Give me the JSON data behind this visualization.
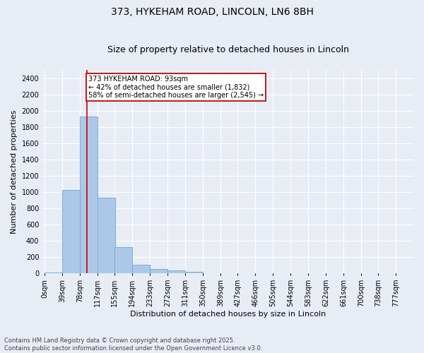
{
  "title_line1": "373, HYKEHAM ROAD, LINCOLN, LN6 8BH",
  "title_line2": "Size of property relative to detached houses in Lincoln",
  "xlabel": "Distribution of detached houses by size in Lincoln",
  "ylabel": "Number of detached properties",
  "bar_color": "#adc8e6",
  "bar_edge_color": "#6aaad4",
  "background_color": "#e8edf5",
  "grid_color": "#ffffff",
  "annotation_box_color": "#cc0000",
  "annotation_text": "373 HYKEHAM ROAD: 93sqm\n← 42% of detached houses are smaller (1,832)\n58% of semi-detached houses are larger (2,545) →",
  "red_line_x": 93,
  "categories": [
    "0sqm",
    "39sqm",
    "78sqm",
    "117sqm",
    "155sqm",
    "194sqm",
    "233sqm",
    "272sqm",
    "311sqm",
    "350sqm",
    "389sqm",
    "427sqm",
    "466sqm",
    "505sqm",
    "544sqm",
    "583sqm",
    "622sqm",
    "661sqm",
    "700sqm",
    "738sqm",
    "777sqm"
  ],
  "bin_edges": [
    0,
    39,
    78,
    117,
    155,
    194,
    233,
    272,
    311,
    350,
    389,
    427,
    466,
    505,
    544,
    583,
    622,
    661,
    700,
    738,
    777
  ],
  "values": [
    15,
    1030,
    1930,
    930,
    320,
    110,
    55,
    35,
    22,
    0,
    0,
    0,
    0,
    0,
    0,
    0,
    0,
    0,
    0,
    0,
    0
  ],
  "ylim": [
    0,
    2500
  ],
  "yticks": [
    0,
    200,
    400,
    600,
    800,
    1000,
    1200,
    1400,
    1600,
    1800,
    2000,
    2200,
    2400
  ],
  "footer": "Contains HM Land Registry data © Crown copyright and database right 2025.\nContains public sector information licensed under the Open Government Licence v3.0.",
  "title_fontsize": 10,
  "subtitle_fontsize": 9,
  "axis_label_fontsize": 8,
  "tick_fontsize": 7,
  "annotation_fontsize": 7,
  "footer_fontsize": 6
}
